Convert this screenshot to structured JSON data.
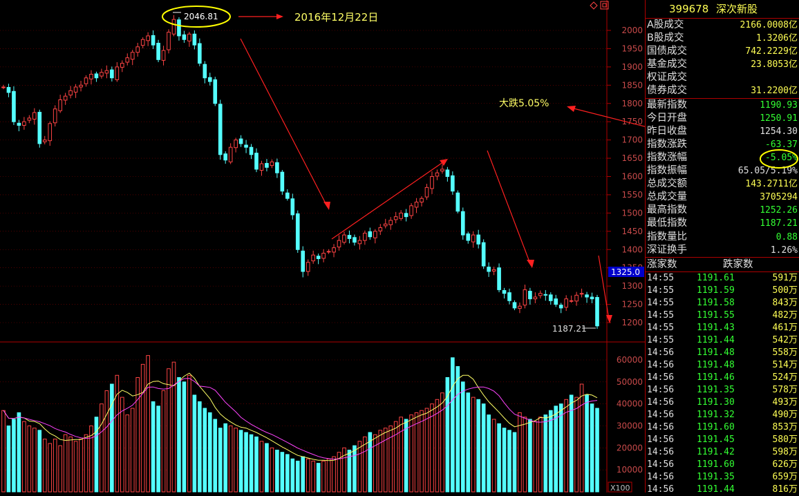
{
  "quote": {
    "code": "399678",
    "name": "深次新股",
    "rows": [
      {
        "label": "A股成交",
        "value": "2166.0008亿",
        "color": "#ffff55"
      },
      {
        "label": "B股成交",
        "value": "1.3206亿",
        "color": "#ffff55"
      },
      {
        "label": "国债成交",
        "value": "742.2229亿",
        "color": "#ffff55"
      },
      {
        "label": "基金成交",
        "value": "23.8053亿",
        "color": "#ffff55"
      },
      {
        "label": "权证成交",
        "value": "",
        "color": "#ffff55"
      },
      {
        "label": "债券成交",
        "value": "31.2200亿",
        "color": "#ffff55"
      },
      {
        "label": "最新指数",
        "value": "1190.93",
        "color": "#33ff33"
      },
      {
        "label": "今日开盘",
        "value": "1250.91",
        "color": "#33ff33"
      },
      {
        "label": "昨日收盘",
        "value": "1254.30",
        "color": "#e0e0e0"
      },
      {
        "label": "指数涨跌",
        "value": "-63.37",
        "color": "#33ff33"
      },
      {
        "label": "指数涨幅",
        "value": "-5.05%",
        "color": "#33ff33"
      },
      {
        "label": "指数振幅",
        "value": "65.05/5.19%",
        "color": "#e0e0e0"
      },
      {
        "label": "总成交额",
        "value": "143.2711亿",
        "color": "#ffff55"
      },
      {
        "label": "总成交量",
        "value": "3705294",
        "color": "#ffff55"
      },
      {
        "label": "最高指数",
        "value": "1252.26",
        "color": "#33ff33"
      },
      {
        "label": "最低指数",
        "value": "1187.21",
        "color": "#33ff33"
      },
      {
        "label": "指数量比",
        "value": "0.88",
        "color": "#33ff33"
      },
      {
        "label": "深证换手",
        "value": "1.26%",
        "color": "#e0e0e0"
      }
    ],
    "ticks_header": {
      "up": "涨家数",
      "down": "跌家数"
    },
    "ticks": [
      {
        "time": "14:55",
        "price": "1191.61",
        "vol": "591万"
      },
      {
        "time": "14:55",
        "price": "1191.59",
        "vol": "500万"
      },
      {
        "time": "14:55",
        "price": "1191.58",
        "vol": "843万"
      },
      {
        "time": "14:55",
        "price": "1191.55",
        "vol": "482万"
      },
      {
        "time": "14:55",
        "price": "1191.43",
        "vol": "461万"
      },
      {
        "time": "14:55",
        "price": "1191.44",
        "vol": "542万"
      },
      {
        "time": "14:56",
        "price": "1191.48",
        "vol": "558万"
      },
      {
        "time": "14:56",
        "price": "1191.48",
        "vol": "514万"
      },
      {
        "time": "14:56",
        "price": "1191.46",
        "vol": "524万"
      },
      {
        "time": "14:56",
        "price": "1191.35",
        "vol": "578万"
      },
      {
        "time": "14:56",
        "price": "1191.30",
        "vol": "493万"
      },
      {
        "time": "14:56",
        "price": "1191.32",
        "vol": "490万"
      },
      {
        "time": "14:56",
        "price": "1191.60",
        "vol": "853万"
      },
      {
        "time": "14:56",
        "price": "1191.45",
        "vol": "580万"
      },
      {
        "time": "14:56",
        "price": "1191.42",
        "vol": "598万"
      },
      {
        "time": "14:56",
        "price": "1191.60",
        "vol": "626万"
      },
      {
        "time": "14:56",
        "price": "1191.35",
        "vol": "659万"
      },
      {
        "time": "14:56",
        "price": "1191.44",
        "vol": "816万"
      }
    ]
  },
  "annotations": {
    "peak_value": "2046.81",
    "peak_date": "2016年12月22日",
    "drop_text": "大跌5.05%",
    "low_value": "1187.21",
    "price_marker": "1325.0",
    "volume_unit": "X100"
  },
  "colors": {
    "up": "#ff4444",
    "down": "#54ffff",
    "grid": "#8b0000",
    "accent": "#ffff00",
    "ma5": "#ffff66",
    "ma10": "#ff44ff"
  },
  "chart_data": {
    "type": "candlestick",
    "price_axis": {
      "ticks": [
        1200,
        1250,
        1300,
        1350,
        1400,
        1450,
        1500,
        1550,
        1600,
        1650,
        1700,
        1750,
        1800,
        1850,
        1900,
        1950,
        2000
      ],
      "range": [
        1170,
        2080
      ]
    },
    "volume_axis": {
      "ticks": [
        10000,
        20000,
        30000,
        40000,
        50000,
        60000
      ],
      "range": [
        0,
        67000
      ],
      "unit": "X100"
    },
    "close": [
      1845,
      1830,
      1750,
      1740,
      1750,
      1760,
      1775,
      1690,
      1700,
      1745,
      1785,
      1810,
      1820,
      1835,
      1845,
      1850,
      1870,
      1880,
      1870,
      1885,
      1890,
      1870,
      1900,
      1910,
      1925,
      1940,
      1955,
      1975,
      1985,
      1960,
      1920,
      1945,
      1995,
      2030,
      1985,
      1975,
      1990,
      1960,
      1910,
      1870,
      1860,
      1800,
      1660,
      1645,
      1680,
      1700,
      1690,
      1680,
      1660,
      1620,
      1635,
      1625,
      1640,
      1610,
      1560,
      1540,
      1495,
      1400,
      1340,
      1365,
      1385,
      1375,
      1390,
      1395,
      1405,
      1425,
      1440,
      1430,
      1420,
      1425,
      1445,
      1435,
      1450,
      1460,
      1470,
      1480,
      1490,
      1500,
      1490,
      1520,
      1530,
      1540,
      1570,
      1600,
      1610,
      1620,
      1600,
      1560,
      1505,
      1440,
      1425,
      1440,
      1415,
      1355,
      1340,
      1345,
      1290,
      1280,
      1260,
      1240,
      1245,
      1290,
      1265,
      1270,
      1280,
      1275,
      1260,
      1250,
      1240,
      1265,
      1260,
      1275,
      1280,
      1270,
      1265,
      1190.93
    ],
    "volume": [
      37000,
      30000,
      33000,
      36000,
      32000,
      30000,
      29000,
      28000,
      24000,
      22000,
      24000,
      21000,
      26000,
      25000,
      23000,
      24000,
      26000,
      30000,
      34000,
      40000,
      46000,
      49000,
      53000,
      43000,
      35000,
      38000,
      52000,
      58000,
      62000,
      41000,
      39000,
      46000,
      56000,
      59000,
      52000,
      50000,
      53000,
      44000,
      41000,
      38000,
      36000,
      33000,
      29000,
      31000,
      30000,
      29000,
      28000,
      27000,
      26000,
      25000,
      23000,
      22000,
      20000,
      19000,
      18000,
      17000,
      15000,
      14000,
      16000,
      15000,
      14000,
      13000,
      14000,
      15000,
      16000,
      18000,
      20000,
      19000,
      21000,
      23000,
      25000,
      27000,
      26000,
      28000,
      29000,
      30000,
      32000,
      34000,
      33000,
      35000,
      36000,
      37000,
      38000,
      40000,
      42000,
      45000,
      52000,
      61000,
      57000,
      50000,
      45000,
      43000,
      42000,
      40000,
      35000,
      33000,
      31000,
      29000,
      28000,
      27000,
      36000,
      34000,
      33000,
      32000,
      34000,
      35000,
      37000,
      39000,
      40000,
      42000,
      44000,
      43000,
      49000,
      44000,
      40000,
      38000
    ]
  }
}
